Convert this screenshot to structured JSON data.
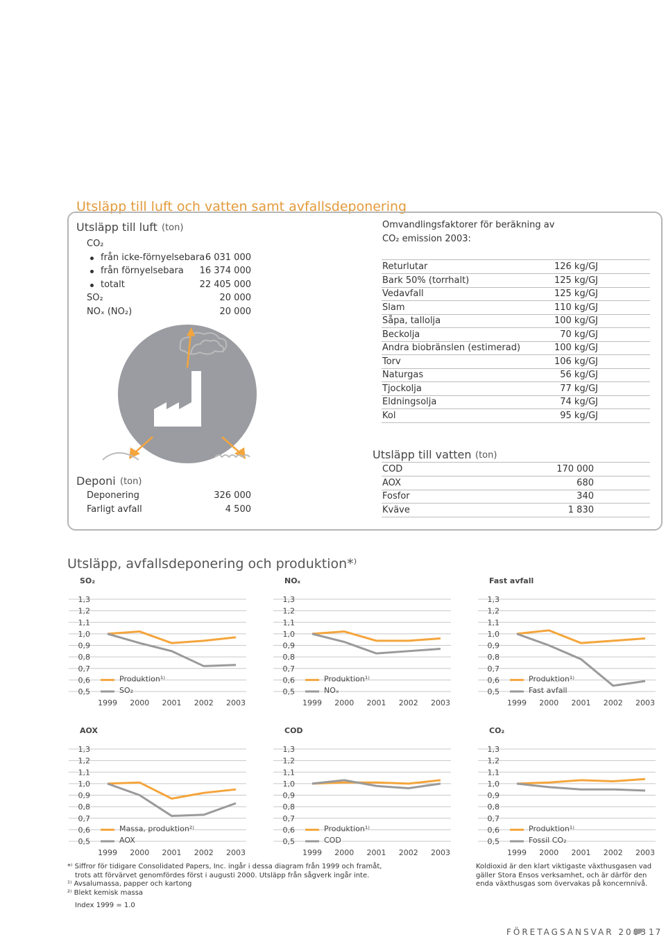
{
  "header": {
    "title": "Utsläpp till luft och vatten samt avfallsdeponering"
  },
  "air": {
    "title": "Utsläpp till luft",
    "unit": "(ton)",
    "rows": [
      {
        "label": "CO₂"
      },
      {
        "label": "från icke-förnyelsebara",
        "value": "6 031 000",
        "bullet": true
      },
      {
        "label": "från förnyelsebara",
        "value": "16 374 000",
        "bullet": true
      },
      {
        "label": "totalt",
        "value": "22 405 000",
        "bullet": true
      },
      {
        "label": "SO₂",
        "value": "20 000"
      },
      {
        "label": "NOₓ (NO₂)",
        "value": "20 000"
      }
    ]
  },
  "factors": {
    "title_lines": [
      "Omvandlingsfaktorer för beräkning av",
      "CO₂ emission 2003:"
    ],
    "rows": [
      [
        "Returlutar",
        "126 kg/GJ"
      ],
      [
        "Bark 50% (torrhalt)",
        "125 kg/GJ"
      ],
      [
        "Vedavfall",
        "125 kg/GJ"
      ],
      [
        "Slam",
        "110 kg/GJ"
      ],
      [
        "Såpa, tallolja",
        "100 kg/GJ"
      ],
      [
        "Beckolja",
        "70 kg/GJ"
      ],
      [
        "Andra biobränslen (estimerad)",
        "100 kg/GJ"
      ],
      [
        "Torv",
        "106 kg/GJ"
      ],
      [
        "Naturgas",
        "56 kg/GJ"
      ],
      [
        "Tjockolja",
        "77 kg/GJ"
      ],
      [
        "Eldningsolja",
        "74 kg/GJ"
      ],
      [
        "Kol",
        "95 kg/GJ"
      ]
    ]
  },
  "landfill": {
    "title": "Deponi",
    "unit": "(ton)",
    "rows": [
      [
        "Deponering",
        "326 000"
      ],
      [
        "Farligt avfall",
        "4 500"
      ]
    ]
  },
  "water": {
    "title": "Utsläpp till vatten",
    "unit": "(ton)",
    "rows": [
      [
        "COD",
        "170 000"
      ],
      [
        "AOX",
        "680"
      ],
      [
        "Fosfor",
        "340"
      ],
      [
        "Kväve",
        "1 830"
      ]
    ]
  },
  "section_title": "Utsläpp, avfallsdeponering och produktion*⁾",
  "chart_data": [
    {
      "type": "line",
      "title": "SO₂",
      "categories": [
        "1999",
        "2000",
        "2001",
        "2002",
        "2003"
      ],
      "ylim": [
        0.5,
        1.3
      ],
      "yticks": [
        {
          "value": 0.5,
          "label": "0,5"
        },
        {
          "value": 0.6,
          "label": "0,6"
        },
        {
          "value": 0.7,
          "label": "0,7"
        },
        {
          "value": 0.8,
          "label": "0,8"
        },
        {
          "value": 0.9,
          "label": "0,9"
        },
        {
          "value": 1.0,
          "label": "1,0"
        },
        {
          "value": 1.1,
          "label": "1,1"
        },
        {
          "value": 1.2,
          "label": "1,2"
        },
        {
          "value": 1.3,
          "label": "1,3"
        }
      ],
      "grid": true,
      "series": [
        {
          "name": "Produktion¹⁾",
          "color": "#f4a53c",
          "values": [
            1.0,
            1.02,
            0.92,
            0.94,
            0.97
          ]
        },
        {
          "name": "SO₂",
          "color": "#9a9a9a",
          "values": [
            1.0,
            0.92,
            0.85,
            0.72,
            0.73
          ]
        }
      ]
    },
    {
      "type": "line",
      "title": "NOₓ",
      "categories": [
        "1999",
        "2000",
        "2001",
        "2002",
        "2003"
      ],
      "ylim": [
        0.5,
        1.3
      ],
      "yticks": [
        {
          "value": 0.5,
          "label": "0,5"
        },
        {
          "value": 0.6,
          "label": "0,6"
        },
        {
          "value": 0.7,
          "label": "0,7"
        },
        {
          "value": 0.8,
          "label": "0,8"
        },
        {
          "value": 0.9,
          "label": "0,9"
        },
        {
          "value": 1.0,
          "label": "1,0"
        },
        {
          "value": 1.1,
          "label": "1,1"
        },
        {
          "value": 1.2,
          "label": "1,2"
        },
        {
          "value": 1.3,
          "label": "1,3"
        }
      ],
      "grid": true,
      "series": [
        {
          "name": "Produktion¹⁾",
          "color": "#f4a53c",
          "values": [
            1.0,
            1.02,
            0.94,
            0.94,
            0.96
          ]
        },
        {
          "name": "NOₓ",
          "color": "#9a9a9a",
          "values": [
            1.0,
            0.93,
            0.83,
            0.85,
            0.87
          ]
        }
      ]
    },
    {
      "type": "line",
      "title": "Fast avfall",
      "categories": [
        "1999",
        "2000",
        "2001",
        "2002",
        "2003"
      ],
      "ylim": [
        0.5,
        1.3
      ],
      "yticks": [
        {
          "value": 0.5,
          "label": "0,5"
        },
        {
          "value": 0.6,
          "label": "0,6"
        },
        {
          "value": 0.7,
          "label": "0,7"
        },
        {
          "value": 0.8,
          "label": "0,8"
        },
        {
          "value": 0.9,
          "label": "0,9"
        },
        {
          "value": 1.0,
          "label": "1,0"
        },
        {
          "value": 1.1,
          "label": "1,1"
        },
        {
          "value": 1.2,
          "label": "1,2"
        },
        {
          "value": 1.3,
          "label": "1,3"
        }
      ],
      "grid": true,
      "series": [
        {
          "name": "Produktion¹⁾",
          "color": "#f4a53c",
          "values": [
            1.0,
            1.03,
            0.92,
            0.94,
            0.96
          ]
        },
        {
          "name": "Fast avfall",
          "color": "#9a9a9a",
          "values": [
            1.0,
            0.9,
            0.78,
            0.55,
            0.59
          ]
        }
      ]
    },
    {
      "type": "line",
      "title": "AOX",
      "categories": [
        "1999",
        "2000",
        "2001",
        "2002",
        "2003"
      ],
      "ylim": [
        0.5,
        1.3
      ],
      "yticks": [
        {
          "value": 0.5,
          "label": "0,5"
        },
        {
          "value": 0.6,
          "label": "0,6"
        },
        {
          "value": 0.7,
          "label": "0,7"
        },
        {
          "value": 0.8,
          "label": "0,8"
        },
        {
          "value": 0.9,
          "label": "0,9"
        },
        {
          "value": 1.0,
          "label": "1,0"
        },
        {
          "value": 1.1,
          "label": "1,1"
        },
        {
          "value": 1.2,
          "label": "1,2"
        },
        {
          "value": 1.3,
          "label": "1,3"
        }
      ],
      "grid": true,
      "series": [
        {
          "name": "Massa, produktion²⁾",
          "color": "#f4a53c",
          "values": [
            1.0,
            1.01,
            0.87,
            0.92,
            0.95
          ]
        },
        {
          "name": "AOX",
          "color": "#9a9a9a",
          "values": [
            1.0,
            0.9,
            0.72,
            0.73,
            0.83
          ]
        }
      ]
    },
    {
      "type": "line",
      "title": "COD",
      "categories": [
        "1999",
        "2000",
        "2001",
        "2002",
        "2003"
      ],
      "ylim": [
        0.5,
        1.3
      ],
      "yticks": [
        {
          "value": 0.5,
          "label": "0,5"
        },
        {
          "value": 0.6,
          "label": "0,6"
        },
        {
          "value": 0.7,
          "label": "0,7"
        },
        {
          "value": 0.8,
          "label": "0,8"
        },
        {
          "value": 0.9,
          "label": "0,9"
        },
        {
          "value": 1.0,
          "label": "1,0"
        },
        {
          "value": 1.1,
          "label": "1,1"
        },
        {
          "value": 1.2,
          "label": "1,2"
        },
        {
          "value": 1.3,
          "label": "1,3"
        }
      ],
      "grid": true,
      "series": [
        {
          "name": "Produktion¹⁾",
          "color": "#f4a53c",
          "values": [
            1.0,
            1.01,
            1.01,
            1.0,
            1.03
          ]
        },
        {
          "name": "COD",
          "color": "#9a9a9a",
          "values": [
            1.0,
            1.03,
            0.98,
            0.96,
            1.0
          ]
        }
      ]
    },
    {
      "type": "line",
      "title": "CO₂",
      "categories": [
        "1999",
        "2000",
        "2001",
        "2002",
        "2003"
      ],
      "ylim": [
        0.5,
        1.3
      ],
      "yticks": [
        {
          "value": 0.5,
          "label": "0,5"
        },
        {
          "value": 0.6,
          "label": "0,6"
        },
        {
          "value": 0.7,
          "label": "0,7"
        },
        {
          "value": 0.8,
          "label": "0,8"
        },
        {
          "value": 0.9,
          "label": "0,9"
        },
        {
          "value": 1.0,
          "label": "1,0"
        },
        {
          "value": 1.1,
          "label": "1,1"
        },
        {
          "value": 1.2,
          "label": "1,2"
        },
        {
          "value": 1.3,
          "label": "1,3"
        }
      ],
      "grid": true,
      "series": [
        {
          "name": "Produktion¹⁾",
          "color": "#f4a53c",
          "values": [
            1.0,
            1.01,
            1.03,
            1.02,
            1.04
          ]
        },
        {
          "name": "Fossil CO₂",
          "color": "#9a9a9a",
          "values": [
            1.0,
            0.97,
            0.95,
            0.95,
            0.94
          ]
        }
      ]
    }
  ],
  "footnotes": [
    "*⁾ Siffror för tidigare Consolidated Papers, Inc. ingår i dessa diagram från 1999 och framåt,",
    "trots att förvärvet genomfördes först i augusti 2000. Utsläpp från sågverk ingår inte.",
    "¹⁾ Avsalumassa, papper och kartong",
    "²⁾ Blekt kemisk massa"
  ],
  "index_note": "Index 1999 = 1.0",
  "side_note": "Koldioxid är den klart viktigaste växthusgasen vad gäller Stora Ensos verksamhet, och är därför den enda växthusgas som övervakas på koncernnivå.",
  "footer": {
    "title": "FÖRETAGSANSVAR 2003",
    "page": "17"
  }
}
